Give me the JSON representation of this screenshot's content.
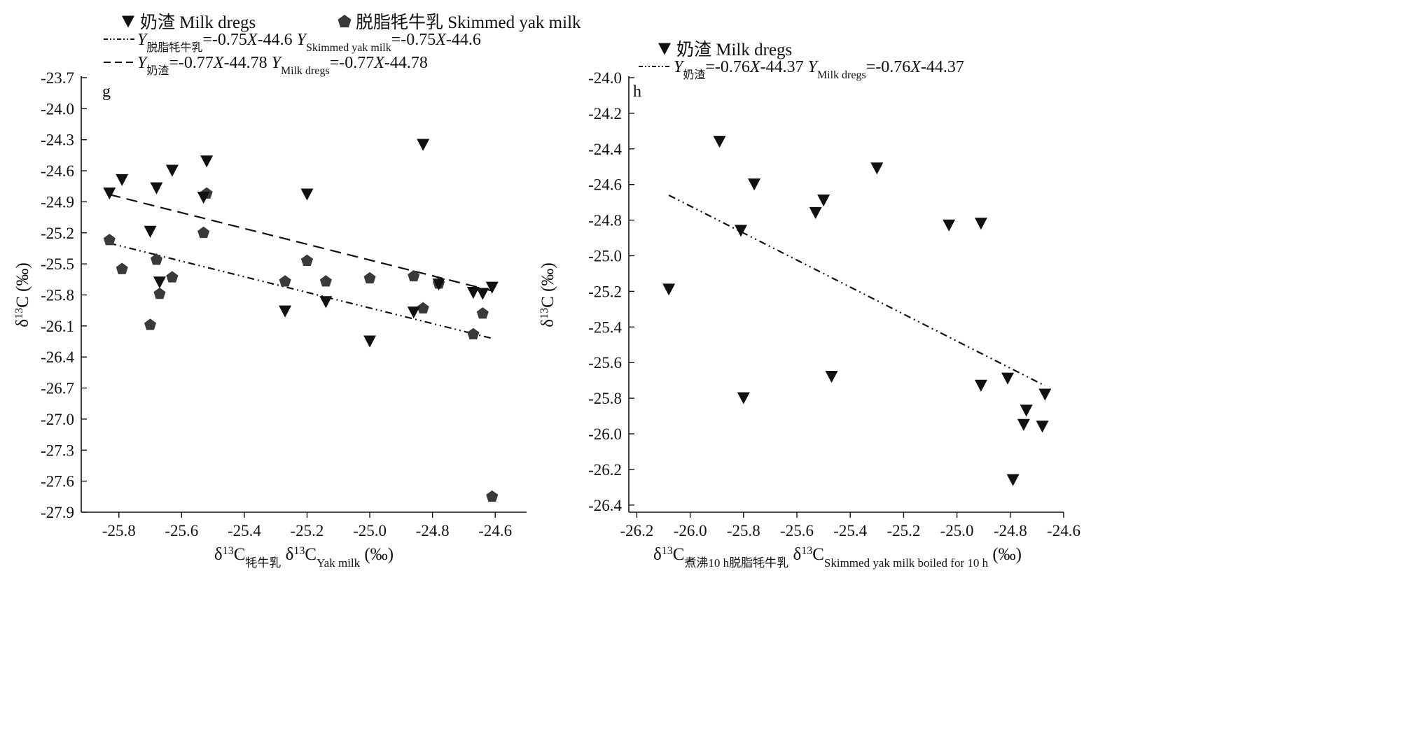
{
  "chart_data": [
    {
      "panel_letter": "g",
      "type": "scatter",
      "xlabel": {
        "main": "δ",
        "sup": "13",
        "c": "C",
        "sub_cn": "牦牛乳",
        "sub_en": "Yak milk",
        "unit": "(‰)"
      },
      "ylabel": {
        "main": "δ",
        "sup": "13",
        "c": "C",
        "unit": "(‰)"
      },
      "xlim": [
        -25.92,
        -24.5
      ],
      "ylim": [
        -27.9,
        -23.7
      ],
      "xticks": [
        "-25.8",
        "-25.6",
        "-25.4",
        "-25.2",
        "-25.0",
        "-24.8",
        "-24.6"
      ],
      "yticks": [
        "-23.7",
        "-24.0",
        "-24.3",
        "-24.6",
        "-24.9",
        "-25.2",
        "-25.5",
        "-25.8",
        "-26.1",
        "-26.4",
        "-26.7",
        "-27.0",
        "-27.3",
        "-27.6",
        "-27.9"
      ],
      "legend": [
        {
          "marker": "triangle",
          "label": "奶渣 Milk dregs"
        },
        {
          "marker": "pentagon",
          "label": "脱脂牦牛乳 Skimmed yak milk"
        }
      ],
      "fit_legend": [
        {
          "dash": "dashdotdot",
          "y": "Y",
          "sub_cn": "脱脂牦牛乳",
          "eq1": "=-0.75",
          "x": "X",
          "eq2": "-44.6",
          "sub_en": "Skimmed yak milk"
        },
        {
          "dash": "dashed",
          "y": "Y",
          "sub_cn": "奶渣",
          "eq1": "=-0.77",
          "x": "X",
          "eq2": "-44.78",
          "sub_en": "Milk dregs"
        }
      ],
      "series": [
        {
          "name": "奶渣 Milk dregs",
          "marker": "triangle",
          "points": [
            [
              -25.83,
              -24.82
            ],
            [
              -25.79,
              -24.69
            ],
            [
              -25.7,
              -25.19
            ],
            [
              -25.68,
              -24.77
            ],
            [
              -25.67,
              -25.68
            ],
            [
              -25.63,
              -24.6
            ],
            [
              -25.53,
              -24.86
            ],
            [
              -25.52,
              -24.51
            ],
            [
              -25.27,
              -25.96
            ],
            [
              -25.2,
              -24.83
            ],
            [
              -25.14,
              -25.87
            ],
            [
              -25.0,
              -26.25
            ],
            [
              -24.86,
              -25.97
            ],
            [
              -24.83,
              -24.35
            ],
            [
              -24.78,
              -25.7
            ],
            [
              -24.67,
              -25.78
            ],
            [
              -24.64,
              -25.79
            ],
            [
              -24.61,
              -25.73
            ]
          ]
        },
        {
          "name": "脱脂牦牛乳 Skimmed yak milk",
          "marker": "pentagon",
          "points": [
            [
              -25.83,
              -25.27
            ],
            [
              -25.79,
              -25.55
            ],
            [
              -25.7,
              -26.09
            ],
            [
              -25.68,
              -25.46
            ],
            [
              -25.67,
              -25.79
            ],
            [
              -25.63,
              -25.63
            ],
            [
              -25.53,
              -25.2
            ],
            [
              -25.52,
              -24.82
            ],
            [
              -25.27,
              -25.67
            ],
            [
              -25.2,
              -25.47
            ],
            [
              -25.14,
              -25.67
            ],
            [
              -25.0,
              -25.64
            ],
            [
              -24.86,
              -25.62
            ],
            [
              -24.83,
              -25.93
            ],
            [
              -24.78,
              -25.69
            ],
            [
              -24.67,
              -26.18
            ],
            [
              -24.64,
              -25.98
            ],
            [
              -24.61,
              -27.75
            ]
          ]
        }
      ],
      "fit_lines": [
        {
          "dash": "dashdotdot",
          "x": [
            -25.83,
            -24.61
          ],
          "y": [
            -25.3,
            -26.22
          ]
        },
        {
          "dash": "dashed",
          "x": [
            -25.83,
            -24.61
          ],
          "y": [
            -24.83,
            -25.76
          ]
        }
      ]
    },
    {
      "panel_letter": "h",
      "type": "scatter",
      "xlabel": {
        "main": "δ",
        "sup": "13",
        "c": "C",
        "sub_cn": "煮沸10 h脱脂牦牛乳",
        "sub_en": "Skimmed yak milk boiled for 10 h",
        "unit": "(‰)"
      },
      "ylabel": {
        "main": "δ",
        "sup": "13",
        "c": "C",
        "unit": "(‰)"
      },
      "xlim": [
        -26.23,
        -24.6
      ],
      "ylim": [
        -26.44,
        -24.0
      ],
      "xticks": [
        "-26.2",
        "-26.0",
        "-25.8",
        "-25.6",
        "-25.4",
        "-25.2",
        "-25.0",
        "-24.8",
        "-24.6"
      ],
      "yticks": [
        "-24.0",
        "-24.2",
        "-24.4",
        "-24.6",
        "-24.8",
        "-25.0",
        "-25.2",
        "-25.4",
        "-25.6",
        "-25.8",
        "-26.0",
        "-26.2",
        "-26.4"
      ],
      "legend": [
        {
          "marker": "triangle",
          "label": "奶渣 Milk dregs"
        }
      ],
      "fit_legend": [
        {
          "dash": "dashdotdot",
          "y": "Y",
          "sub_cn": "奶渣",
          "eq1": "=-0.76",
          "x": "X",
          "eq2": "-44.37",
          "sub_en": "Milk dregs"
        }
      ],
      "series": [
        {
          "name": "奶渣 Milk dregs",
          "marker": "triangle",
          "points": [
            [
              -26.08,
              -25.19
            ],
            [
              -25.89,
              -24.36
            ],
            [
              -25.81,
              -24.86
            ],
            [
              -25.8,
              -25.8
            ],
            [
              -25.76,
              -24.6
            ],
            [
              -25.53,
              -24.76
            ],
            [
              -25.5,
              -24.69
            ],
            [
              -25.47,
              -25.68
            ],
            [
              -25.3,
              -24.51
            ],
            [
              -25.03,
              -24.83
            ],
            [
              -24.91,
              -24.82
            ],
            [
              -24.91,
              -25.73
            ],
            [
              -24.81,
              -25.69
            ],
            [
              -24.79,
              -26.26
            ],
            [
              -24.75,
              -25.95
            ],
            [
              -24.74,
              -25.87
            ],
            [
              -24.68,
              -25.96
            ],
            [
              -24.67,
              -25.78
            ]
          ]
        }
      ],
      "fit_lines": [
        {
          "dash": "dashdotdot",
          "x": [
            -26.08,
            -24.67
          ],
          "y": [
            -24.66,
            -25.73
          ]
        }
      ]
    }
  ]
}
